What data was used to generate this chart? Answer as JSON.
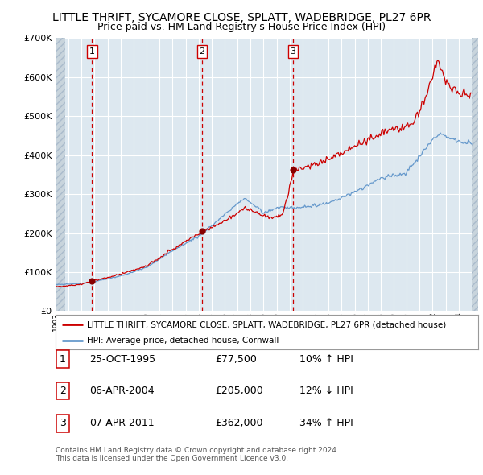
{
  "title": "LITTLE THRIFT, SYCAMORE CLOSE, SPLATT, WADEBRIDGE, PL27 6PR",
  "subtitle": "Price paid vs. HM Land Registry's House Price Index (HPI)",
  "legend_property": "LITTLE THRIFT, SYCAMORE CLOSE, SPLATT, WADEBRIDGE, PL27 6PR (detached house)",
  "legend_hpi": "HPI: Average price, detached house, Cornwall",
  "footer1": "Contains HM Land Registry data © Crown copyright and database right 2024.",
  "footer2": "This data is licensed under the Open Government Licence v3.0.",
  "sales": [
    {
      "num": 1,
      "date": "25-OCT-1995",
      "price": 77500,
      "pct": "10%",
      "dir": "↑"
    },
    {
      "num": 2,
      "date": "06-APR-2004",
      "price": 205000,
      "pct": "12%",
      "dir": "↓"
    },
    {
      "num": 3,
      "date": "07-APR-2011",
      "price": 362000,
      "pct": "34%",
      "dir": "↑"
    }
  ],
  "sale_dates_decimal": [
    1995.815,
    2004.267,
    2011.267
  ],
  "sale_prices": [
    77500,
    205000,
    362000
  ],
  "ylim": [
    0,
    700000
  ],
  "yticks": [
    0,
    100000,
    200000,
    300000,
    400000,
    500000,
    600000,
    700000
  ],
  "xlim_left": 1993.0,
  "xlim_right": 2025.5,
  "hatch_left_end": 1993.75,
  "hatch_right_start": 2025.0,
  "hpi_line_color": "#6699cc",
  "property_line_color": "#cc0000",
  "sale_marker_color": "#880000",
  "vline_color": "#cc0000",
  "plot_bg": "#dde8f0",
  "grid_color": "#ffffff",
  "hatch_fill_color": "#c8d4dc",
  "hatch_line_color": "#aabbcc"
}
